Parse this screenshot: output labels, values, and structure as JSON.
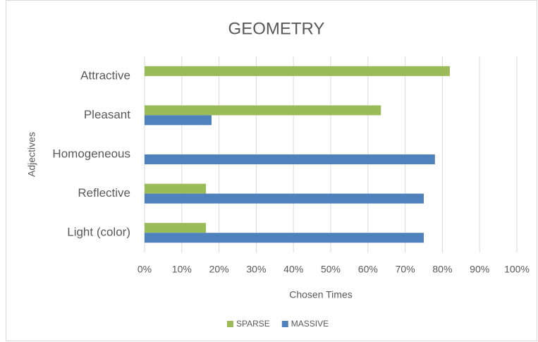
{
  "chart_data": {
    "type": "barh",
    "title": "GEOMETRY",
    "categories": [
      "Attractive",
      "Pleasant",
      "Homogeneous",
      "Reflective",
      "Light (color)"
    ],
    "series": [
      {
        "name": "SPARSE",
        "color": "#9bbb59",
        "values": [
          82,
          63.5,
          0,
          16.5,
          16.5
        ]
      },
      {
        "name": "MASSIVE",
        "color": "#4f81bd",
        "values": [
          0,
          18,
          78,
          75,
          75
        ]
      }
    ],
    "xlim": [
      0,
      100
    ],
    "xticks": [
      {
        "value": 0,
        "label": "0%"
      },
      {
        "value": 10,
        "label": "10%"
      },
      {
        "value": 20,
        "label": "20%"
      },
      {
        "value": 30,
        "label": "30%"
      },
      {
        "value": 40,
        "label": "40%"
      },
      {
        "value": 50,
        "label": "50%"
      },
      {
        "value": 60,
        "label": "60%"
      },
      {
        "value": 70,
        "label": "70%"
      },
      {
        "value": 80,
        "label": "80%"
      },
      {
        "value": 90,
        "label": "90%"
      },
      {
        "value": 100,
        "label": "100%"
      }
    ],
    "xlabel": "Chosen Times",
    "ylabel": "Adjectives",
    "grid": true,
    "legend": "bottom"
  }
}
